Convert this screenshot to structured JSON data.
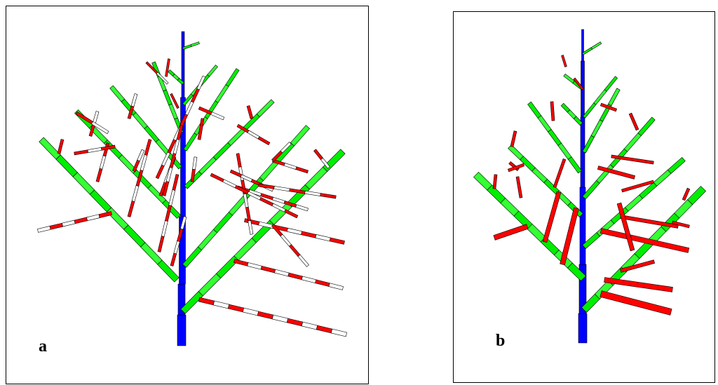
{
  "panels": [
    {
      "label": "a"
    },
    {
      "label": "b"
    }
  ],
  "colors": {
    "trunk": "#0000ff",
    "branch": "#00ee00",
    "shoot": "#ff0000",
    "internode_white": "#ffffff",
    "outline": "#000000"
  }
}
